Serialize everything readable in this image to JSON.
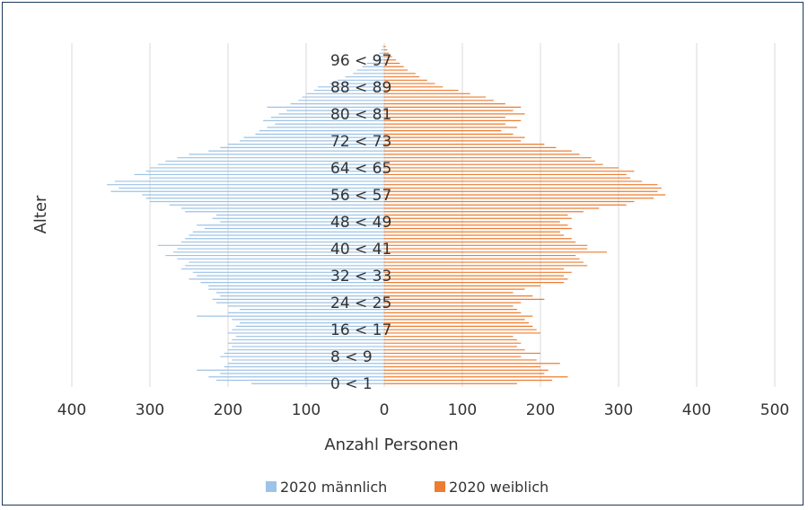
{
  "chart_data": {
    "type": "bar",
    "orientation": "horizontal",
    "xlabel": "Anzahl Personen",
    "ylabel": "Alter",
    "xlim": [
      -400,
      500
    ],
    "x_ticks": [
      -400,
      -300,
      -200,
      -100,
      0,
      100,
      200,
      300,
      400,
      500
    ],
    "x_tick_labels": [
      "400",
      "300",
      "200",
      "100",
      "0",
      "100",
      "200",
      "300",
      "400",
      "500"
    ],
    "age_labels": [
      {
        "age": 0,
        "label": "0 < 1"
      },
      {
        "age": 8,
        "label": "8 < 9"
      },
      {
        "age": 16,
        "label": "16 < 17"
      },
      {
        "age": 24,
        "label": "24 < 25"
      },
      {
        "age": 32,
        "label": "32 < 33"
      },
      {
        "age": 40,
        "label": "40 < 41"
      },
      {
        "age": 48,
        "label": "48 < 49"
      },
      {
        "age": 56,
        "label": "56 < 57"
      },
      {
        "age": 64,
        "label": "64 < 65"
      },
      {
        "age": 72,
        "label": "72 < 73"
      },
      {
        "age": 80,
        "label": "80 < 81"
      },
      {
        "age": 88,
        "label": "88 < 89"
      },
      {
        "age": 96,
        "label": "96 < 97"
      }
    ],
    "ages": [
      0,
      1,
      2,
      3,
      4,
      5,
      6,
      7,
      8,
      9,
      10,
      11,
      12,
      13,
      14,
      15,
      16,
      17,
      18,
      19,
      20,
      21,
      22,
      23,
      24,
      25,
      26,
      27,
      28,
      29,
      30,
      31,
      32,
      33,
      34,
      35,
      36,
      37,
      38,
      39,
      40,
      41,
      42,
      43,
      44,
      45,
      46,
      47,
      48,
      49,
      50,
      51,
      52,
      53,
      54,
      55,
      56,
      57,
      58,
      59,
      60,
      61,
      62,
      63,
      64,
      65,
      66,
      67,
      68,
      69,
      70,
      71,
      72,
      73,
      74,
      75,
      76,
      77,
      78,
      79,
      80,
      81,
      82,
      83,
      84,
      85,
      86,
      87,
      88,
      89,
      90,
      91,
      92,
      93,
      94,
      95,
      96,
      97,
      98,
      99,
      100
    ],
    "series": [
      {
        "name": "2020 männlich",
        "color": "#9dc3e6",
        "values": [
          170,
          215,
          225,
          210,
          240,
          205,
          200,
          195,
          210,
          205,
          200,
          195,
          200,
          195,
          190,
          200,
          195,
          190,
          185,
          195,
          240,
          200,
          185,
          200,
          215,
          220,
          210,
          215,
          225,
          225,
          235,
          250,
          240,
          245,
          260,
          255,
          250,
          265,
          280,
          270,
          265,
          290,
          260,
          255,
          250,
          245,
          230,
          240,
          210,
          220,
          215,
          255,
          260,
          275,
          300,
          305,
          310,
          350,
          340,
          355,
          345,
          300,
          320,
          305,
          300,
          290,
          280,
          265,
          250,
          225,
          210,
          200,
          185,
          180,
          165,
          160,
          150,
          140,
          155,
          145,
          135,
          125,
          150,
          120,
          110,
          105,
          100,
          90,
          85,
          70,
          60,
          50,
          40,
          35,
          28,
          22,
          15,
          10,
          6,
          4,
          2
        ]
      },
      {
        "name": "2020 weiblich",
        "color": "#ed7d31",
        "values": [
          170,
          215,
          235,
          205,
          210,
          200,
          225,
          195,
          175,
          200,
          180,
          170,
          175,
          170,
          165,
          200,
          195,
          190,
          185,
          180,
          190,
          175,
          170,
          165,
          175,
          205,
          190,
          165,
          180,
          200,
          230,
          235,
          230,
          240,
          230,
          260,
          255,
          250,
          245,
          285,
          260,
          260,
          245,
          240,
          230,
          225,
          240,
          235,
          225,
          240,
          235,
          255,
          275,
          310,
          320,
          345,
          360,
          350,
          355,
          350,
          330,
          315,
          310,
          320,
          300,
          280,
          270,
          265,
          250,
          240,
          220,
          205,
          175,
          180,
          165,
          150,
          170,
          155,
          175,
          155,
          180,
          165,
          175,
          155,
          140,
          130,
          110,
          95,
          75,
          65,
          55,
          45,
          40,
          30,
          25,
          20,
          15,
          10,
          6,
          4,
          2
        ]
      }
    ],
    "legend": [
      "2020 männlich",
      "2020 weiblich"
    ],
    "legend_position": "bottom",
    "grid": true
  }
}
